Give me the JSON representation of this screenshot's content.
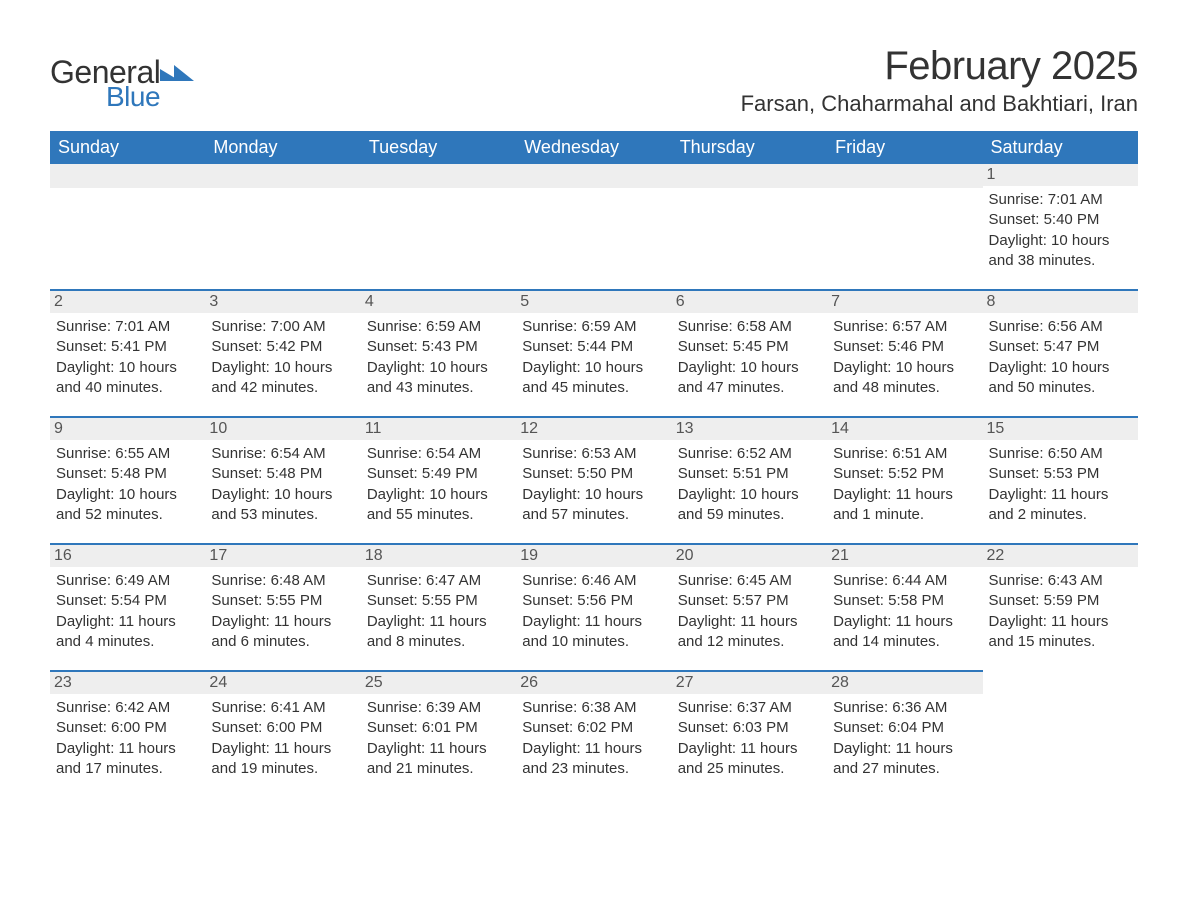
{
  "logo": {
    "word1": "General",
    "word2": "Blue",
    "icon_color": "#2f77bb"
  },
  "header": {
    "month_title": "February 2025",
    "location": "Farsan, Chaharmahal and Bakhtiari, Iran"
  },
  "styling": {
    "header_bg": "#2f77bb",
    "header_fg": "#ffffff",
    "row_sep": "#2f77bb",
    "daynum_bg": "#eeeeee",
    "body_fg": "#333333",
    "page_bg": "#ffffff",
    "title_fontsize": 40,
    "location_fontsize": 22,
    "th_fontsize": 18,
    "cell_fontsize": 15
  },
  "weekdays": [
    "Sunday",
    "Monday",
    "Tuesday",
    "Wednesday",
    "Thursday",
    "Friday",
    "Saturday"
  ],
  "weeks": [
    [
      null,
      null,
      null,
      null,
      null,
      null,
      {
        "d": "1",
        "sr": "7:01 AM",
        "ss": "5:40 PM",
        "dl": "10 hours and 38 minutes."
      }
    ],
    [
      {
        "d": "2",
        "sr": "7:01 AM",
        "ss": "5:41 PM",
        "dl": "10 hours and 40 minutes."
      },
      {
        "d": "3",
        "sr": "7:00 AM",
        "ss": "5:42 PM",
        "dl": "10 hours and 42 minutes."
      },
      {
        "d": "4",
        "sr": "6:59 AM",
        "ss": "5:43 PM",
        "dl": "10 hours and 43 minutes."
      },
      {
        "d": "5",
        "sr": "6:59 AM",
        "ss": "5:44 PM",
        "dl": "10 hours and 45 minutes."
      },
      {
        "d": "6",
        "sr": "6:58 AM",
        "ss": "5:45 PM",
        "dl": "10 hours and 47 minutes."
      },
      {
        "d": "7",
        "sr": "6:57 AM",
        "ss": "5:46 PM",
        "dl": "10 hours and 48 minutes."
      },
      {
        "d": "8",
        "sr": "6:56 AM",
        "ss": "5:47 PM",
        "dl": "10 hours and 50 minutes."
      }
    ],
    [
      {
        "d": "9",
        "sr": "6:55 AM",
        "ss": "5:48 PM",
        "dl": "10 hours and 52 minutes."
      },
      {
        "d": "10",
        "sr": "6:54 AM",
        "ss": "5:48 PM",
        "dl": "10 hours and 53 minutes."
      },
      {
        "d": "11",
        "sr": "6:54 AM",
        "ss": "5:49 PM",
        "dl": "10 hours and 55 minutes."
      },
      {
        "d": "12",
        "sr": "6:53 AM",
        "ss": "5:50 PM",
        "dl": "10 hours and 57 minutes."
      },
      {
        "d": "13",
        "sr": "6:52 AM",
        "ss": "5:51 PM",
        "dl": "10 hours and 59 minutes."
      },
      {
        "d": "14",
        "sr": "6:51 AM",
        "ss": "5:52 PM",
        "dl": "11 hours and 1 minute."
      },
      {
        "d": "15",
        "sr": "6:50 AM",
        "ss": "5:53 PM",
        "dl": "11 hours and 2 minutes."
      }
    ],
    [
      {
        "d": "16",
        "sr": "6:49 AM",
        "ss": "5:54 PM",
        "dl": "11 hours and 4 minutes."
      },
      {
        "d": "17",
        "sr": "6:48 AM",
        "ss": "5:55 PM",
        "dl": "11 hours and 6 minutes."
      },
      {
        "d": "18",
        "sr": "6:47 AM",
        "ss": "5:55 PM",
        "dl": "11 hours and 8 minutes."
      },
      {
        "d": "19",
        "sr": "6:46 AM",
        "ss": "5:56 PM",
        "dl": "11 hours and 10 minutes."
      },
      {
        "d": "20",
        "sr": "6:45 AM",
        "ss": "5:57 PM",
        "dl": "11 hours and 12 minutes."
      },
      {
        "d": "21",
        "sr": "6:44 AM",
        "ss": "5:58 PM",
        "dl": "11 hours and 14 minutes."
      },
      {
        "d": "22",
        "sr": "6:43 AM",
        "ss": "5:59 PM",
        "dl": "11 hours and 15 minutes."
      }
    ],
    [
      {
        "d": "23",
        "sr": "6:42 AM",
        "ss": "6:00 PM",
        "dl": "11 hours and 17 minutes."
      },
      {
        "d": "24",
        "sr": "6:41 AM",
        "ss": "6:00 PM",
        "dl": "11 hours and 19 minutes."
      },
      {
        "d": "25",
        "sr": "6:39 AM",
        "ss": "6:01 PM",
        "dl": "11 hours and 21 minutes."
      },
      {
        "d": "26",
        "sr": "6:38 AM",
        "ss": "6:02 PM",
        "dl": "11 hours and 23 minutes."
      },
      {
        "d": "27",
        "sr": "6:37 AM",
        "ss": "6:03 PM",
        "dl": "11 hours and 25 minutes."
      },
      {
        "d": "28",
        "sr": "6:36 AM",
        "ss": "6:04 PM",
        "dl": "11 hours and 27 minutes."
      },
      null
    ]
  ],
  "labels": {
    "sunrise": "Sunrise:",
    "sunset": "Sunset:",
    "daylight": "Daylight:"
  }
}
